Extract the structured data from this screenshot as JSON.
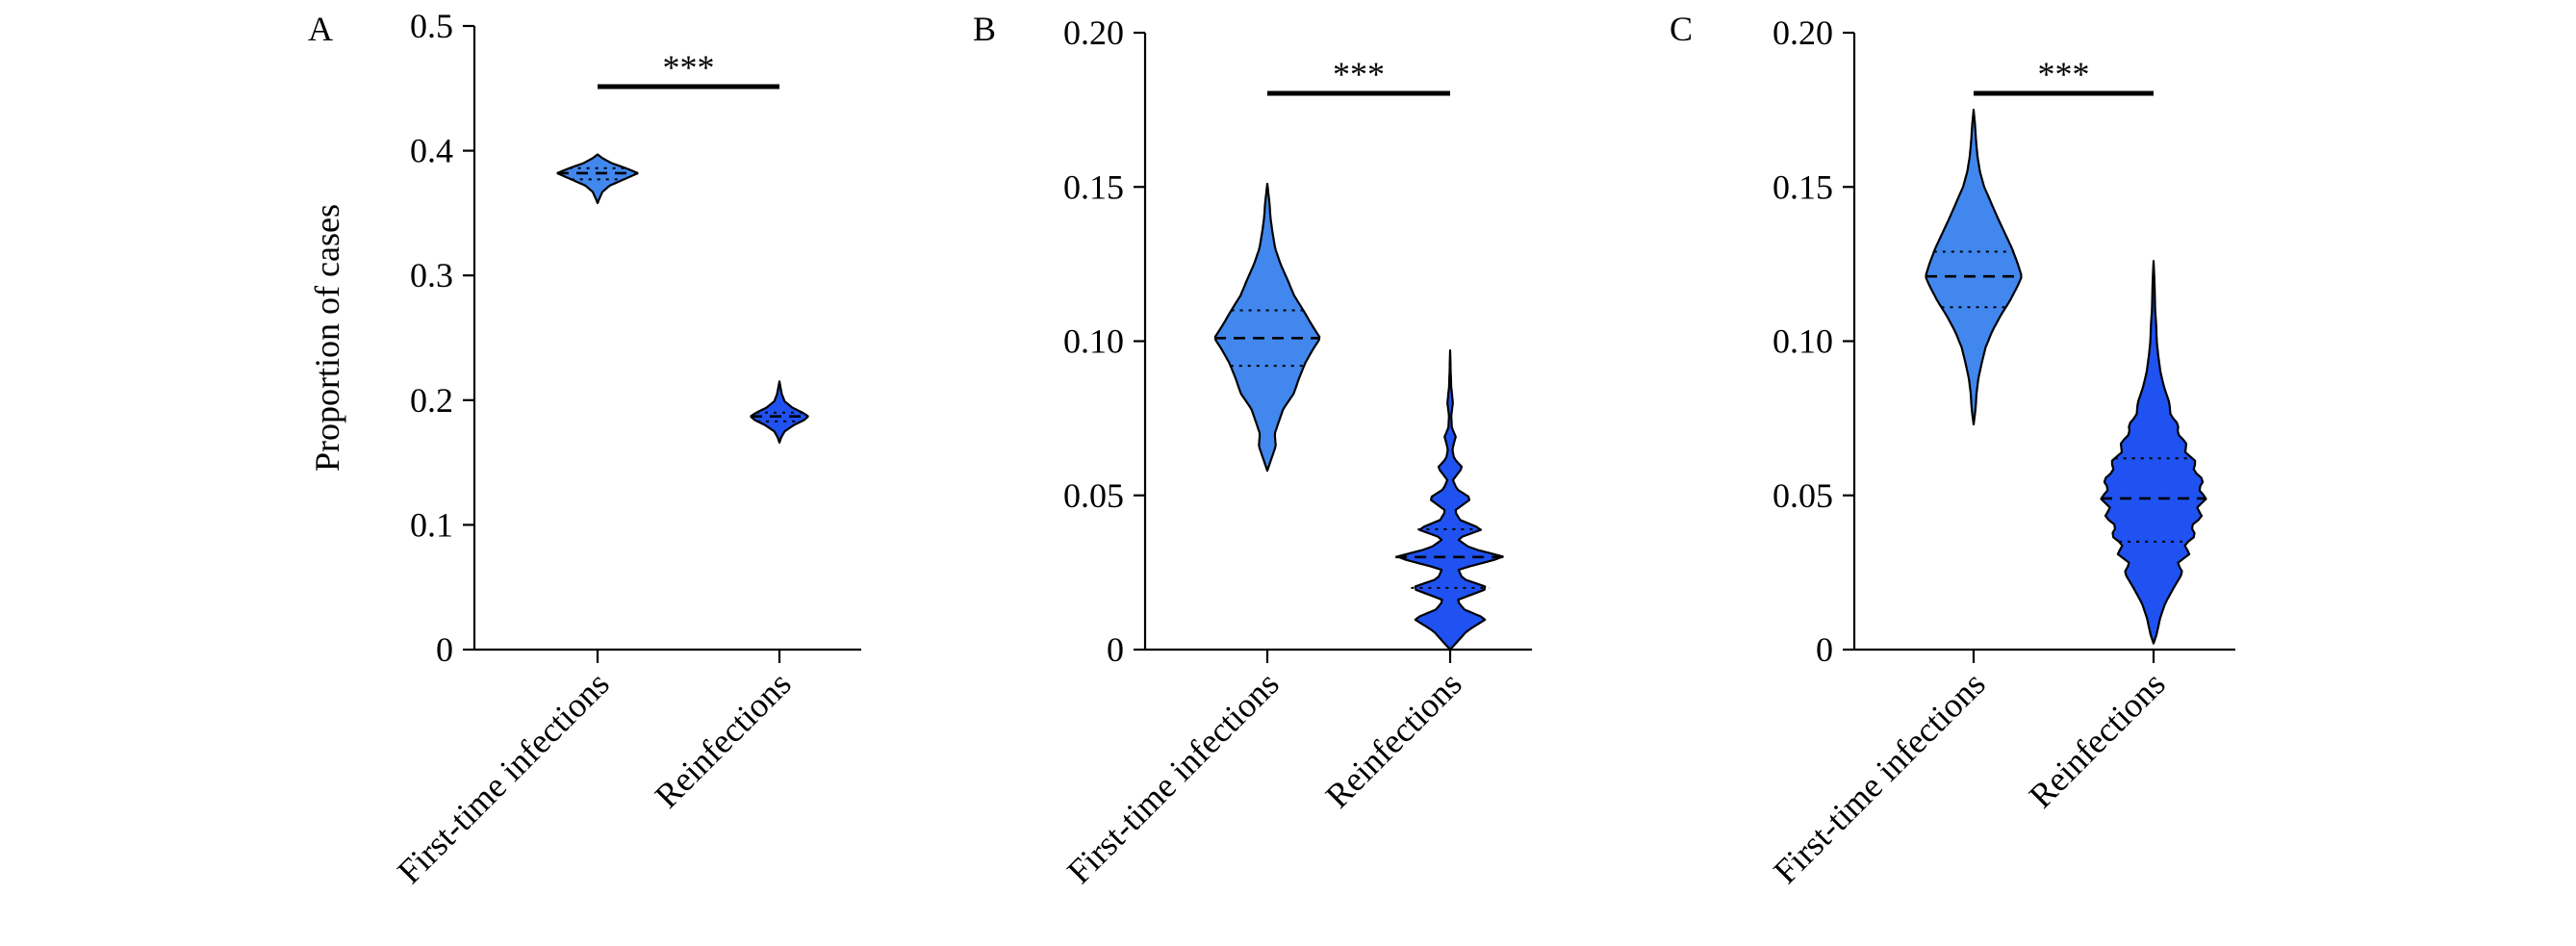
{
  "colors": {
    "first": "#4287ee",
    "reinf": "#1f52f0",
    "stroke": "#000000"
  },
  "chart_data": [
    {
      "type": "violin",
      "panel_label": "A",
      "ylabel": "Proportion of cases",
      "ylim": [
        0,
        0.5
      ],
      "yticks": [
        "0",
        "0.1",
        "0.2",
        "0.3",
        "0.4",
        "0.5"
      ],
      "categories": [
        "First-time infections",
        "Reinfections"
      ],
      "significance": "***",
      "series": [
        {
          "category": "First-time infections",
          "min": 0.358,
          "max": 0.397,
          "q1": 0.377,
          "median": 0.382,
          "q3": 0.386,
          "profile": [
            [
              0.358,
              0.0
            ],
            [
              0.362,
              0.05
            ],
            [
              0.367,
              0.12
            ],
            [
              0.372,
              0.3
            ],
            [
              0.377,
              0.65
            ],
            [
              0.382,
              1.0
            ],
            [
              0.386,
              0.7
            ],
            [
              0.39,
              0.35
            ],
            [
              0.394,
              0.12
            ],
            [
              0.397,
              0.0
            ]
          ]
        },
        {
          "category": "Reinfections",
          "min": 0.166,
          "max": 0.215,
          "q1": 0.183,
          "median": 0.187,
          "q3": 0.19,
          "profile": [
            [
              0.166,
              0.0
            ],
            [
              0.17,
              0.06
            ],
            [
              0.175,
              0.18
            ],
            [
              0.18,
              0.5
            ],
            [
              0.184,
              0.85
            ],
            [
              0.187,
              1.0
            ],
            [
              0.19,
              0.8
            ],
            [
              0.194,
              0.45
            ],
            [
              0.199,
              0.18
            ],
            [
              0.205,
              0.08
            ],
            [
              0.21,
              0.04
            ],
            [
              0.215,
              0.0
            ]
          ]
        }
      ]
    },
    {
      "type": "violin",
      "panel_label": "B",
      "ylabel": "",
      "ylim": [
        0,
        0.2
      ],
      "yticks": [
        "0",
        "0.05",
        "0.10",
        "0.15",
        "0.20"
      ],
      "categories": [
        "First-time infections",
        "Reinfections"
      ],
      "significance": "***",
      "series": [
        {
          "category": "First-time infections",
          "min": 0.058,
          "max": 0.151,
          "q1": 0.092,
          "median": 0.101,
          "q3": 0.11,
          "profile": [
            [
              0.058,
              0.0
            ],
            [
              0.062,
              0.08
            ],
            [
              0.066,
              0.16
            ],
            [
              0.07,
              0.14
            ],
            [
              0.074,
              0.22
            ],
            [
              0.078,
              0.3
            ],
            [
              0.083,
              0.5
            ],
            [
              0.088,
              0.6
            ],
            [
              0.093,
              0.72
            ],
            [
              0.097,
              0.85
            ],
            [
              0.101,
              1.0
            ],
            [
              0.105,
              0.85
            ],
            [
              0.11,
              0.68
            ],
            [
              0.115,
              0.5
            ],
            [
              0.12,
              0.38
            ],
            [
              0.125,
              0.25
            ],
            [
              0.13,
              0.15
            ],
            [
              0.135,
              0.1
            ],
            [
              0.14,
              0.06
            ],
            [
              0.145,
              0.04
            ],
            [
              0.151,
              0.0
            ]
          ]
        },
        {
          "category": "Reinfections",
          "min": 0.0,
          "max": 0.097,
          "q1": 0.02,
          "median": 0.03,
          "q3": 0.039,
          "profile": [
            [
              0.0,
              0.0
            ],
            [
              0.003,
              0.15
            ],
            [
              0.006,
              0.3
            ],
            [
              0.01,
              0.65
            ],
            [
              0.013,
              0.25
            ],
            [
              0.016,
              0.12
            ],
            [
              0.02,
              0.7
            ],
            [
              0.023,
              0.22
            ],
            [
              0.026,
              0.15
            ],
            [
              0.03,
              0.98
            ],
            [
              0.033,
              0.35
            ],
            [
              0.036,
              0.12
            ],
            [
              0.039,
              0.58
            ],
            [
              0.042,
              0.18
            ],
            [
              0.045,
              0.08
            ],
            [
              0.049,
              0.38
            ],
            [
              0.052,
              0.12
            ],
            [
              0.055,
              0.05
            ],
            [
              0.059,
              0.22
            ],
            [
              0.062,
              0.07
            ],
            [
              0.065,
              0.04
            ],
            [
              0.069,
              0.1
            ],
            [
              0.072,
              0.03
            ],
            [
              0.076,
              0.02
            ],
            [
              0.08,
              0.05
            ],
            [
              0.085,
              0.02
            ],
            [
              0.09,
              0.01
            ],
            [
              0.097,
              0.0
            ]
          ]
        }
      ]
    },
    {
      "type": "violin",
      "panel_label": "C",
      "ylabel": "",
      "ylim": [
        0,
        0.2
      ],
      "yticks": [
        "0",
        "0.05",
        "0.10",
        "0.15",
        "0.20"
      ],
      "categories": [
        "First-time infections",
        "Reinfections"
      ],
      "significance": "***",
      "series": [
        {
          "category": "First-time infections",
          "min": 0.073,
          "max": 0.175,
          "q1": 0.111,
          "median": 0.121,
          "q3": 0.129,
          "profile": [
            [
              0.073,
              0.0
            ],
            [
              0.078,
              0.04
            ],
            [
              0.083,
              0.06
            ],
            [
              0.088,
              0.1
            ],
            [
              0.093,
              0.17
            ],
            [
              0.098,
              0.25
            ],
            [
              0.103,
              0.38
            ],
            [
              0.108,
              0.55
            ],
            [
              0.113,
              0.75
            ],
            [
              0.118,
              0.92
            ],
            [
              0.121,
              1.0
            ],
            [
              0.125,
              0.92
            ],
            [
              0.13,
              0.8
            ],
            [
              0.135,
              0.65
            ],
            [
              0.14,
              0.5
            ],
            [
              0.145,
              0.36
            ],
            [
              0.15,
              0.22
            ],
            [
              0.155,
              0.13
            ],
            [
              0.16,
              0.08
            ],
            [
              0.165,
              0.05
            ],
            [
              0.17,
              0.03
            ],
            [
              0.175,
              0.0
            ]
          ]
        },
        {
          "category": "Reinfections",
          "min": 0.002,
          "max": 0.126,
          "q1": 0.035,
          "median": 0.049,
          "q3": 0.062,
          "profile": [
            [
              0.002,
              0.0
            ],
            [
              0.005,
              0.06
            ],
            [
              0.01,
              0.12
            ],
            [
              0.015,
              0.22
            ],
            [
              0.02,
              0.38
            ],
            [
              0.025,
              0.55
            ],
            [
              0.028,
              0.45
            ],
            [
              0.031,
              0.68
            ],
            [
              0.034,
              0.58
            ],
            [
              0.037,
              0.8
            ],
            [
              0.04,
              0.7
            ],
            [
              0.043,
              0.92
            ],
            [
              0.046,
              0.82
            ],
            [
              0.049,
              1.0
            ],
            [
              0.052,
              0.85
            ],
            [
              0.055,
              0.95
            ],
            [
              0.058,
              0.75
            ],
            [
              0.061,
              0.8
            ],
            [
              0.064,
              0.6
            ],
            [
              0.067,
              0.62
            ],
            [
              0.07,
              0.45
            ],
            [
              0.073,
              0.47
            ],
            [
              0.076,
              0.32
            ],
            [
              0.08,
              0.3
            ],
            [
              0.085,
              0.2
            ],
            [
              0.09,
              0.13
            ],
            [
              0.095,
              0.09
            ],
            [
              0.1,
              0.06
            ],
            [
              0.105,
              0.05
            ],
            [
              0.11,
              0.03
            ],
            [
              0.118,
              0.02
            ],
            [
              0.126,
              0.0
            ]
          ]
        }
      ]
    }
  ]
}
